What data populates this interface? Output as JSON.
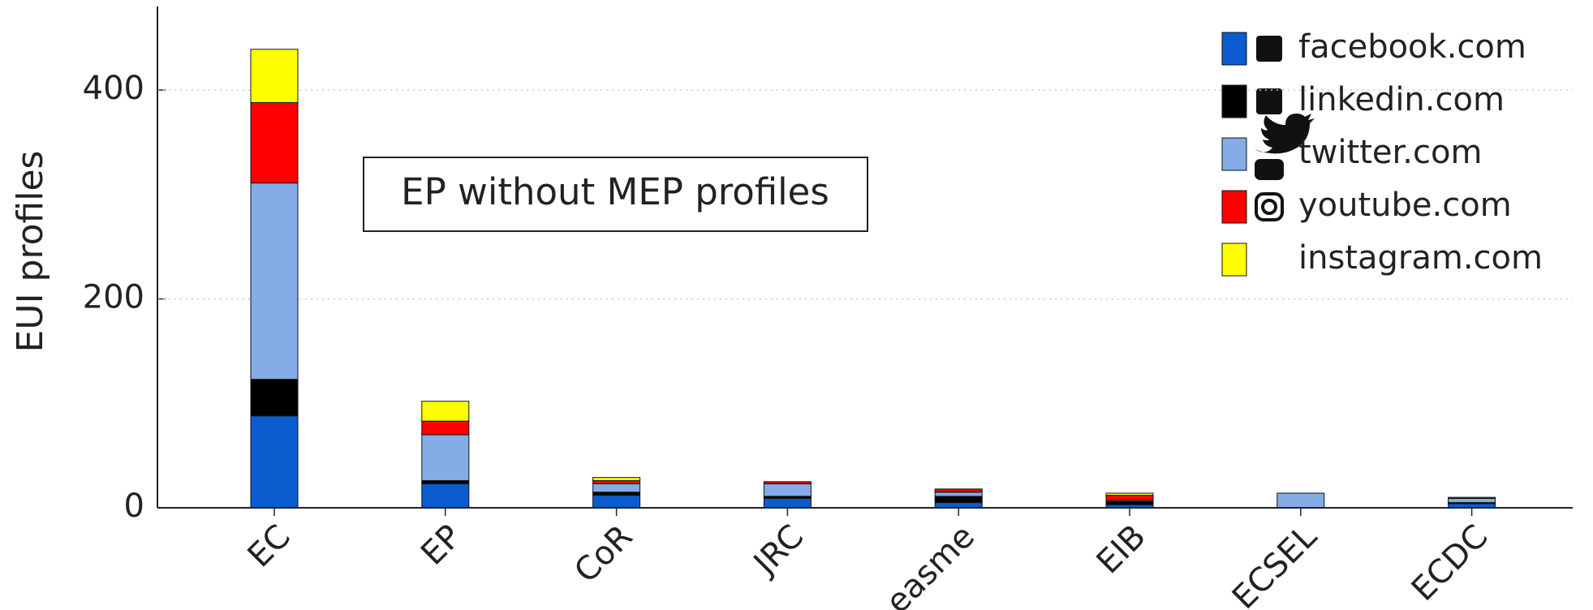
{
  "chart_data": {
    "type": "stacked_bar",
    "annotation": "EP without MEP profiles",
    "ylabel": "EUI profiles",
    "categories": [
      "EC",
      "EP",
      "CoR",
      "JRC",
      "easme",
      "EIB",
      "ECSEL",
      "ECDC"
    ],
    "series": [
      {
        "name": "facebook.com",
        "color": "#0b5ccf",
        "values": [
          88,
          23,
          12,
          9,
          5,
          3,
          0,
          4
        ]
      },
      {
        "name": "linkedin.com",
        "color": "#000000",
        "values": [
          35,
          3,
          3,
          2,
          6,
          3,
          0,
          1
        ]
      },
      {
        "name": "twitter.com",
        "color": "#84ace6",
        "values": [
          188,
          44,
          8,
          12,
          4,
          1,
          14,
          4
        ]
      },
      {
        "name": "youtube.com",
        "color": "#ff0000",
        "values": [
          77,
          13,
          3,
          2,
          3,
          5,
          0,
          1
        ]
      },
      {
        "name": "instagram.com",
        "color": "#ffff00",
        "values": [
          51,
          19,
          3,
          0,
          0,
          2,
          0,
          0
        ]
      }
    ],
    "ylim": [
      0,
      480
    ],
    "yticks": [
      0,
      200,
      400
    ],
    "grid": true,
    "legend": "upper right"
  }
}
